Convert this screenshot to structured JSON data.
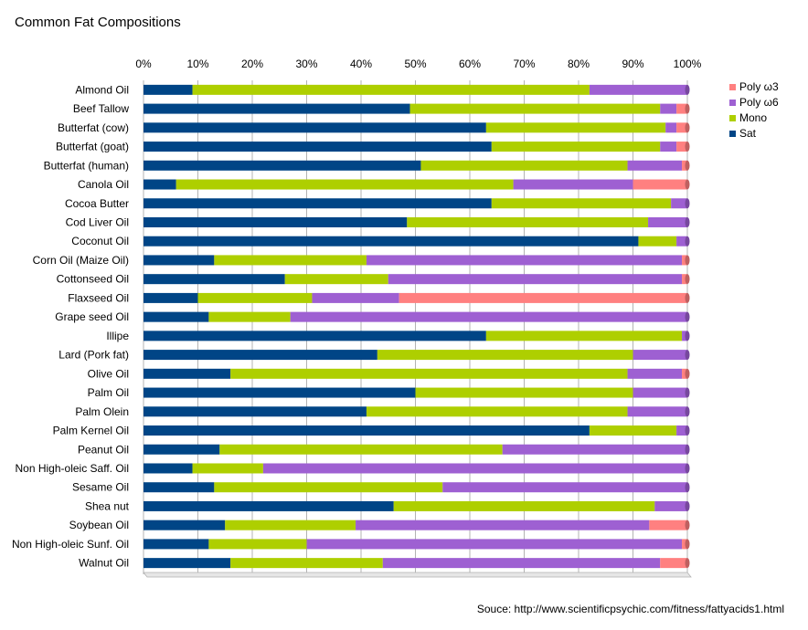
{
  "chart_data": {
    "type": "bar",
    "orientation": "horizontal",
    "stacked": "percent",
    "title": "Common Fat Compositions",
    "xlabel": "",
    "ylabel": "",
    "xlim": [
      0,
      100
    ],
    "x_ticks": [
      "0%",
      "10%",
      "20%",
      "30%",
      "40%",
      "50%",
      "60%",
      "70%",
      "80%",
      "90%",
      "100%"
    ],
    "grid": true,
    "legend_position": "right",
    "categories": [
      "Almond Oil",
      "Beef Tallow",
      "Butterfat (cow)",
      "Butterfat (goat)",
      "Butterfat (human)",
      "Canola Oil",
      "Cocoa Butter",
      "Cod Liver Oil",
      "Coconut Oil",
      "Corn Oil (Maize Oil)",
      "Cottonseed Oil",
      "Flaxseed Oil",
      "Grape seed Oil",
      "Illipe",
      "Lard (Pork fat)",
      "Olive Oil",
      "Palm Oil",
      "Palm Olein",
      "Palm Kernel Oil",
      "Peanut Oil",
      "Non High-oleic Saff. Oil",
      "Sesame Oil",
      "Shea nut",
      "Soybean Oil",
      "Non High-oleic Sunf. Oil",
      "Walnut Oil"
    ],
    "series": [
      {
        "name": "Sat",
        "color": "#004586",
        "values": [
          9,
          49,
          63,
          64,
          51,
          6,
          64,
          47,
          91,
          13,
          26,
          10,
          12,
          63,
          43,
          16,
          50,
          41,
          82,
          14,
          9,
          13,
          46,
          15,
          12,
          16
        ]
      },
      {
        "name": "Mono",
        "color": "#aecf00",
        "values": [
          73,
          46,
          33,
          31,
          38,
          62,
          33,
          43,
          7,
          28,
          19,
          21,
          15,
          36,
          47,
          73,
          40,
          48,
          16,
          52,
          13,
          42,
          48,
          24,
          18,
          28
        ]
      },
      {
        "name": "Poly ω6",
        "color": "#9e60d2",
        "values": [
          18,
          3,
          2,
          3,
          10,
          22,
          3,
          7,
          2,
          58,
          54,
          16,
          73,
          1,
          10,
          10,
          10,
          11,
          2,
          34,
          78,
          45,
          6,
          54,
          69,
          51
        ]
      },
      {
        "name": "Poly ω3",
        "color": "#ff8080",
        "values": [
          0,
          2,
          2,
          2,
          1,
          10,
          0,
          0,
          0,
          1,
          1,
          53,
          0,
          0,
          0,
          1,
          0,
          0,
          0,
          0,
          0,
          0,
          0,
          7,
          1,
          5
        ]
      }
    ],
    "legend_order": [
      "Poly ω3",
      "Poly ω6",
      "Mono",
      "Sat"
    ]
  },
  "source_text": "Souce: http://www.scientificpsychic.com/fitness/fattyacids1.html"
}
